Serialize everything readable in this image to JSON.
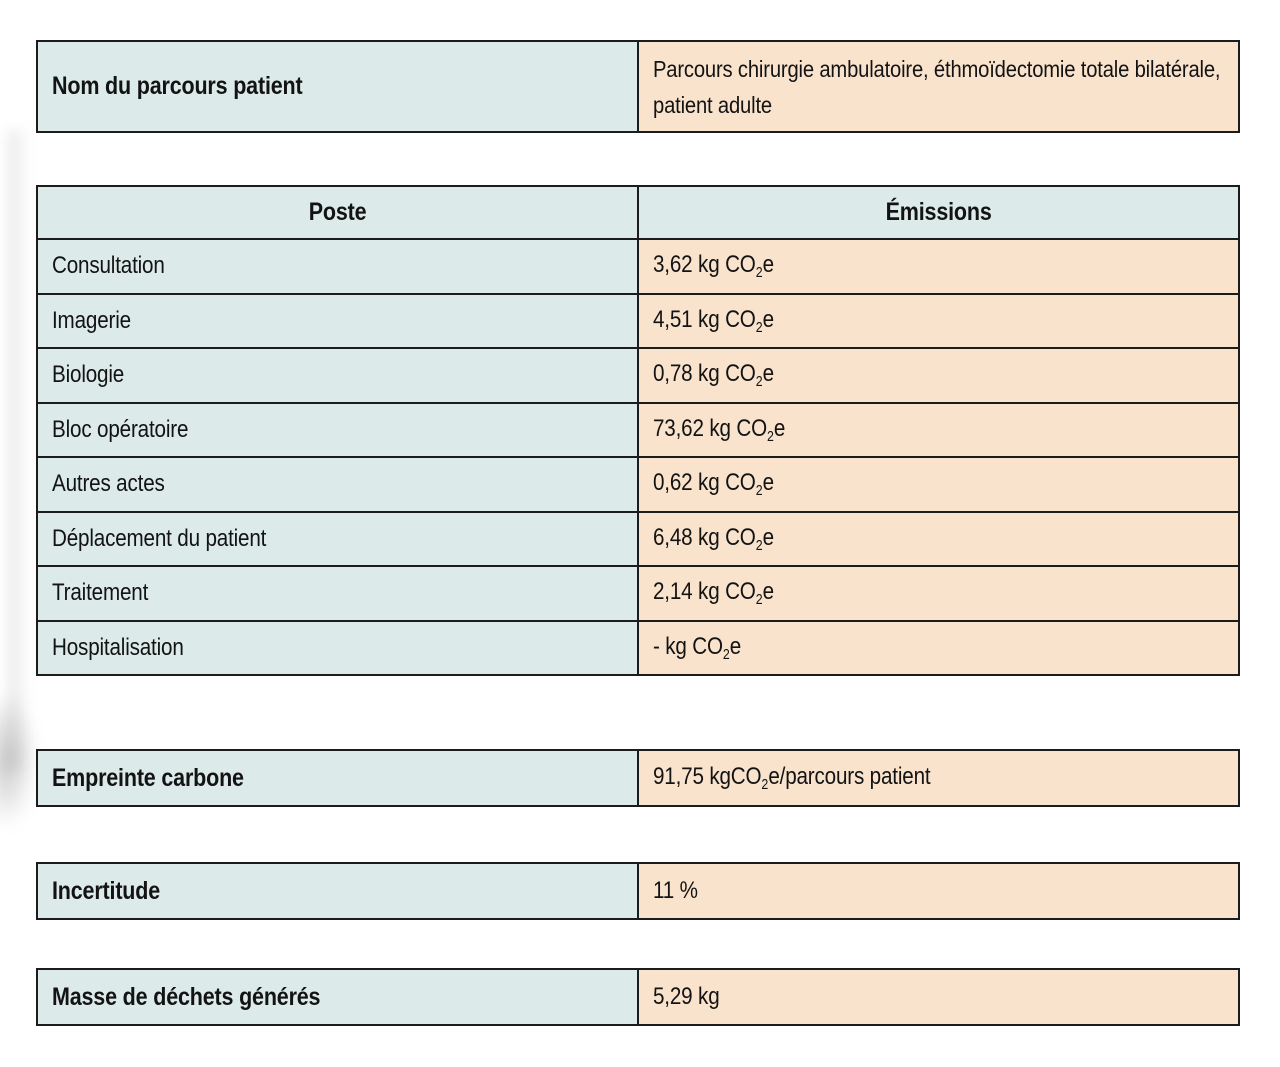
{
  "colors": {
    "teal_cell": "#dceae9",
    "peach_cell": "#f9e3cd",
    "border": "#1c1c1c",
    "text": "#131313"
  },
  "pathway": {
    "label": "Nom du parcours patient",
    "value": "Parcours chirurgie ambulatoire, éthmoïdectomie totale bilatérale, patient adulte"
  },
  "emissions_table": {
    "headers": {
      "poste": "Poste",
      "emissions": "Émissions"
    },
    "rows": [
      {
        "label": "Consultation",
        "value": "3,62 kg CO₂e"
      },
      {
        "label": "Imagerie",
        "value": "4,51 kg CO₂e"
      },
      {
        "label": "Biologie",
        "value": "0,78 kg CO₂e"
      },
      {
        "label": "Bloc opératoire",
        "value": "73,62 kg CO₂e"
      },
      {
        "label": "Autres actes",
        "value": "0,62 kg CO₂e"
      },
      {
        "label": "Déplacement du patient",
        "value": "6,48 kg CO₂e"
      },
      {
        "label": "Traitement",
        "value": "2,14 kg CO₂e"
      },
      {
        "label": "Hospitalisation",
        "value": "- kg CO₂e"
      }
    ]
  },
  "carbon_footprint": {
    "label": "Empreinte carbone",
    "value": "91,75 kgCO₂e/parcours patient"
  },
  "uncertainty": {
    "label": "Incertitude",
    "value": "11 %"
  },
  "waste_mass": {
    "label": "Masse de déchets générés",
    "value": "5,29 kg"
  }
}
